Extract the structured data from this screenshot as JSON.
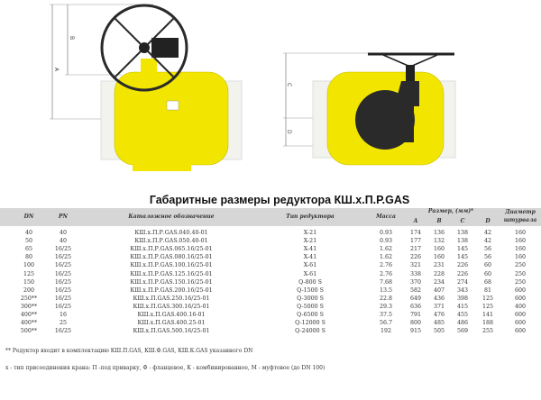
{
  "drawings": {
    "left_labels": [
      "A",
      "B"
    ],
    "right_labels": [
      "C",
      "D"
    ],
    "colors": {
      "body": "#f2e600",
      "pipe": "#f3f3ee",
      "handwheel": "#222222",
      "gearbox": "#2a2a2a"
    }
  },
  "table": {
    "title": "Габаритные размеры редуктора КШ.х.П.Р.GAS",
    "headers": {
      "dn": "DN",
      "pn": "PN",
      "catalog": "Каталожное обозначение",
      "type": "Тип редуктора",
      "mass": "Масса",
      "size": "Размер, (мм)*",
      "a": "A",
      "b": "B",
      "c": "C",
      "d": "D",
      "wheel1": "Диаметр",
      "wheel2": "штурвала"
    },
    "rows": [
      {
        "dn": "40",
        "pn": "40",
        "catalog": "КШ.х.П.Р.GAS.040.40-01",
        "type": "X-21",
        "mass": "0.93",
        "a": "174",
        "b": "136",
        "c": "138",
        "d": "42",
        "wheel": "160"
      },
      {
        "dn": "50",
        "pn": "40",
        "catalog": "КШ.х.П.Р.GAS.050.40-01",
        "type": "X-21",
        "mass": "0.93",
        "a": "177",
        "b": "132",
        "c": "138",
        "d": "42",
        "wheel": "160"
      },
      {
        "dn": "65",
        "pn": "16/25",
        "catalog": "КШ.х.П.Р.GAS.065.16/25-01",
        "type": "X-41",
        "mass": "1.62",
        "a": "217",
        "b": "160",
        "c": "145",
        "d": "56",
        "wheel": "160"
      },
      {
        "dn": "80",
        "pn": "16/25",
        "catalog": "КШ.х.П.Р.GAS.080.16/25-01",
        "type": "X-41",
        "mass": "1.62",
        "a": "226",
        "b": "160",
        "c": "145",
        "d": "56",
        "wheel": "160"
      },
      {
        "dn": "100",
        "pn": "16/25",
        "catalog": "КШ.х.П.Р.GAS.100.16/25-01",
        "type": "X-61",
        "mass": "2.76",
        "a": "321",
        "b": "231",
        "c": "226",
        "d": "60",
        "wheel": "250"
      },
      {
        "dn": "125",
        "pn": "16/25",
        "catalog": "КШ.х.П.Р.GAS.125.16/25-01",
        "type": "X-61",
        "mass": "2.76",
        "a": "338",
        "b": "228",
        "c": "226",
        "d": "60",
        "wheel": "250"
      },
      {
        "dn": "150",
        "pn": "16/25",
        "catalog": "КШ.х.П.Р.GAS.150.16/25-01",
        "type": "Q-800 S",
        "mass": "7.68",
        "a": "370",
        "b": "234",
        "c": "274",
        "d": "68",
        "wheel": "250"
      },
      {
        "dn": "200",
        "pn": "16/25",
        "catalog": "КШ.х.П.Р.GAS.200.16/25-01",
        "type": "Q-1500 S",
        "mass": "13.5",
        "a": "582",
        "b": "407",
        "c": "343",
        "d": "81",
        "wheel": "600"
      },
      {
        "dn": "250**",
        "pn": "16/25",
        "catalog": "КШ.х.П.GAS.250.16/25-01",
        "type": "Q-3000 S",
        "mass": "22.8",
        "a": "649",
        "b": "436",
        "c": "398",
        "d": "125",
        "wheel": "600"
      },
      {
        "dn": "300**",
        "pn": "16/25",
        "catalog": "КШ.х.П.GAS.300.16/25-01",
        "type": "Q-5000 S",
        "mass": "29.3",
        "a": "636",
        "b": "371",
        "c": "415",
        "d": "125",
        "wheel": "400"
      },
      {
        "dn": "400**",
        "pn": "16",
        "catalog": "КШ.х.П.GAS.400.16-01",
        "type": "Q-6500 S",
        "mass": "37.5",
        "a": "791",
        "b": "476",
        "c": "455",
        "d": "141",
        "wheel": "600"
      },
      {
        "dn": "400**",
        "pn": "25",
        "catalog": "КШ.х.П.GAS.400.25-01",
        "type": "Q-12000 S",
        "mass": "56.7",
        "a": "800",
        "b": "485",
        "c": "486",
        "d": "188",
        "wheel": "600"
      },
      {
        "dn": "500**",
        "pn": "16/25",
        "catalog": "КШ.х.П.GAS.500.16/25-01",
        "type": "Q-24000 S",
        "mass": "192",
        "a": "915",
        "b": "505",
        "c": "569",
        "d": "255",
        "wheel": "600"
      }
    ]
  },
  "notes": {
    "note1": "** Редуктор входит в комплектацию КШ.П.GAS, КШ.Ф.GAS, КШ.К.GAS указанного DN",
    "note2": "х - тип присоединения крана: П -под приварку, Ф - фланцевое, К - комбинированное, М - муфтовое (до DN 100)"
  }
}
